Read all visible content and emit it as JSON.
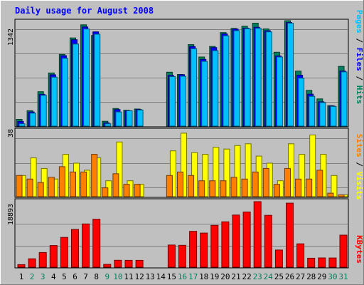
{
  "chart_data": [
    {
      "type": "bar",
      "title": "Daily usage for August 2008",
      "ylabel": "Pages / Files / Hits",
      "ymax_label": "1342",
      "ylim": [
        0,
        1342
      ],
      "categories": [
        "1",
        "2",
        "3",
        "4",
        "5",
        "6",
        "7",
        "8",
        "9",
        "10",
        "11",
        "12",
        "13",
        "14",
        "15",
        "16",
        "17",
        "18",
        "19",
        "20",
        "21",
        "22",
        "23",
        "24",
        "25",
        "26",
        "27",
        "28",
        "29",
        "30",
        "31"
      ],
      "weekend_days": [
        2,
        3,
        9,
        10,
        16,
        17,
        23,
        24,
        30,
        31
      ],
      "series": [
        {
          "name": "Hits",
          "color": "#00805c",
          "values": [
            86,
            196,
            438,
            676,
            913,
            1123,
            1289,
            1154,
            62,
            224,
            202,
            218,
            0,
            0,
            686,
            657,
            1037,
            880,
            1014,
            1191,
            1243,
            1271,
            1310,
            1237,
            940,
            1342,
            700,
            455,
            346,
            260,
            760
          ]
        },
        {
          "name": "Files",
          "color": "#0000ff",
          "values": [
            60,
            180,
            404,
            653,
            896,
            1100,
            1262,
            1200,
            42,
            210,
            196,
            210,
            0,
            0,
            645,
            655,
            1013,
            850,
            1000,
            1173,
            1234,
            1247,
            1258,
            1214,
            893,
            1318,
            648,
            406,
            309,
            256,
            701
          ]
        },
        {
          "name": "Pages",
          "color": "#00c0ff",
          "values": [
            30,
            165,
            392,
            623,
            863,
            1045,
            1236,
            1170,
            30,
            180,
            195,
            205,
            0,
            0,
            630,
            635,
            985,
            824,
            960,
            1150,
            1215,
            1240,
            1245,
            1200,
            880,
            1310,
            610,
            379,
            300,
            250,
            690
          ]
        }
      ]
    },
    {
      "type": "bar",
      "ylabel": "Sites / Visits",
      "ymax_label": "38",
      "ylim": [
        0,
        38
      ],
      "categories": [
        "1",
        "2",
        "3",
        "4",
        "5",
        "6",
        "7",
        "8",
        "9",
        "10",
        "11",
        "12",
        "13",
        "14",
        "15",
        "16",
        "17",
        "18",
        "19",
        "20",
        "21",
        "22",
        "23",
        "24",
        "25",
        "26",
        "27",
        "28",
        "29",
        "30",
        "31"
      ],
      "series": [
        {
          "name": "Visits",
          "color": "#ffff00",
          "values": [
            12,
            22,
            16,
            10,
            24,
            19,
            15,
            22,
            9,
            31,
            9,
            7,
            0,
            0,
            26,
            36,
            25,
            24,
            28,
            27,
            29,
            30,
            23,
            19,
            9,
            30,
            24,
            35,
            24,
            12,
            1
          ]
        },
        {
          "name": "Sites",
          "color": "#ff8000",
          "values": [
            12,
            10,
            8,
            11,
            17,
            14,
            14,
            24,
            5,
            13,
            7,
            7,
            0,
            0,
            12,
            14,
            12,
            9,
            9,
            9,
            11,
            10,
            14,
            16,
            7,
            16,
            10,
            10,
            15,
            2,
            1
          ]
        }
      ]
    },
    {
      "type": "bar",
      "ylabel": "KBytes",
      "ymax_label": "18893",
      "ylim": [
        0,
        18893
      ],
      "categories": [
        "1",
        "2",
        "3",
        "4",
        "5",
        "6",
        "7",
        "8",
        "9",
        "10",
        "11",
        "12",
        "13",
        "14",
        "15",
        "16",
        "17",
        "18",
        "19",
        "20",
        "21",
        "22",
        "23",
        "24",
        "25",
        "26",
        "27",
        "28",
        "29",
        "30",
        "31"
      ],
      "series": [
        {
          "name": "KBytes",
          "color": "#ff0000",
          "values": [
            730,
            2420,
            4230,
            6240,
            8580,
            10880,
            12470,
            13820,
            820,
            1990,
            1980,
            1980,
            0,
            0,
            6380,
            6310,
            10320,
            9840,
            12060,
            13080,
            15030,
            15910,
            18893,
            14960,
            4950,
            18470,
            6730,
            2580,
            2660,
            2640,
            9240
          ]
        }
      ]
    }
  ]
}
